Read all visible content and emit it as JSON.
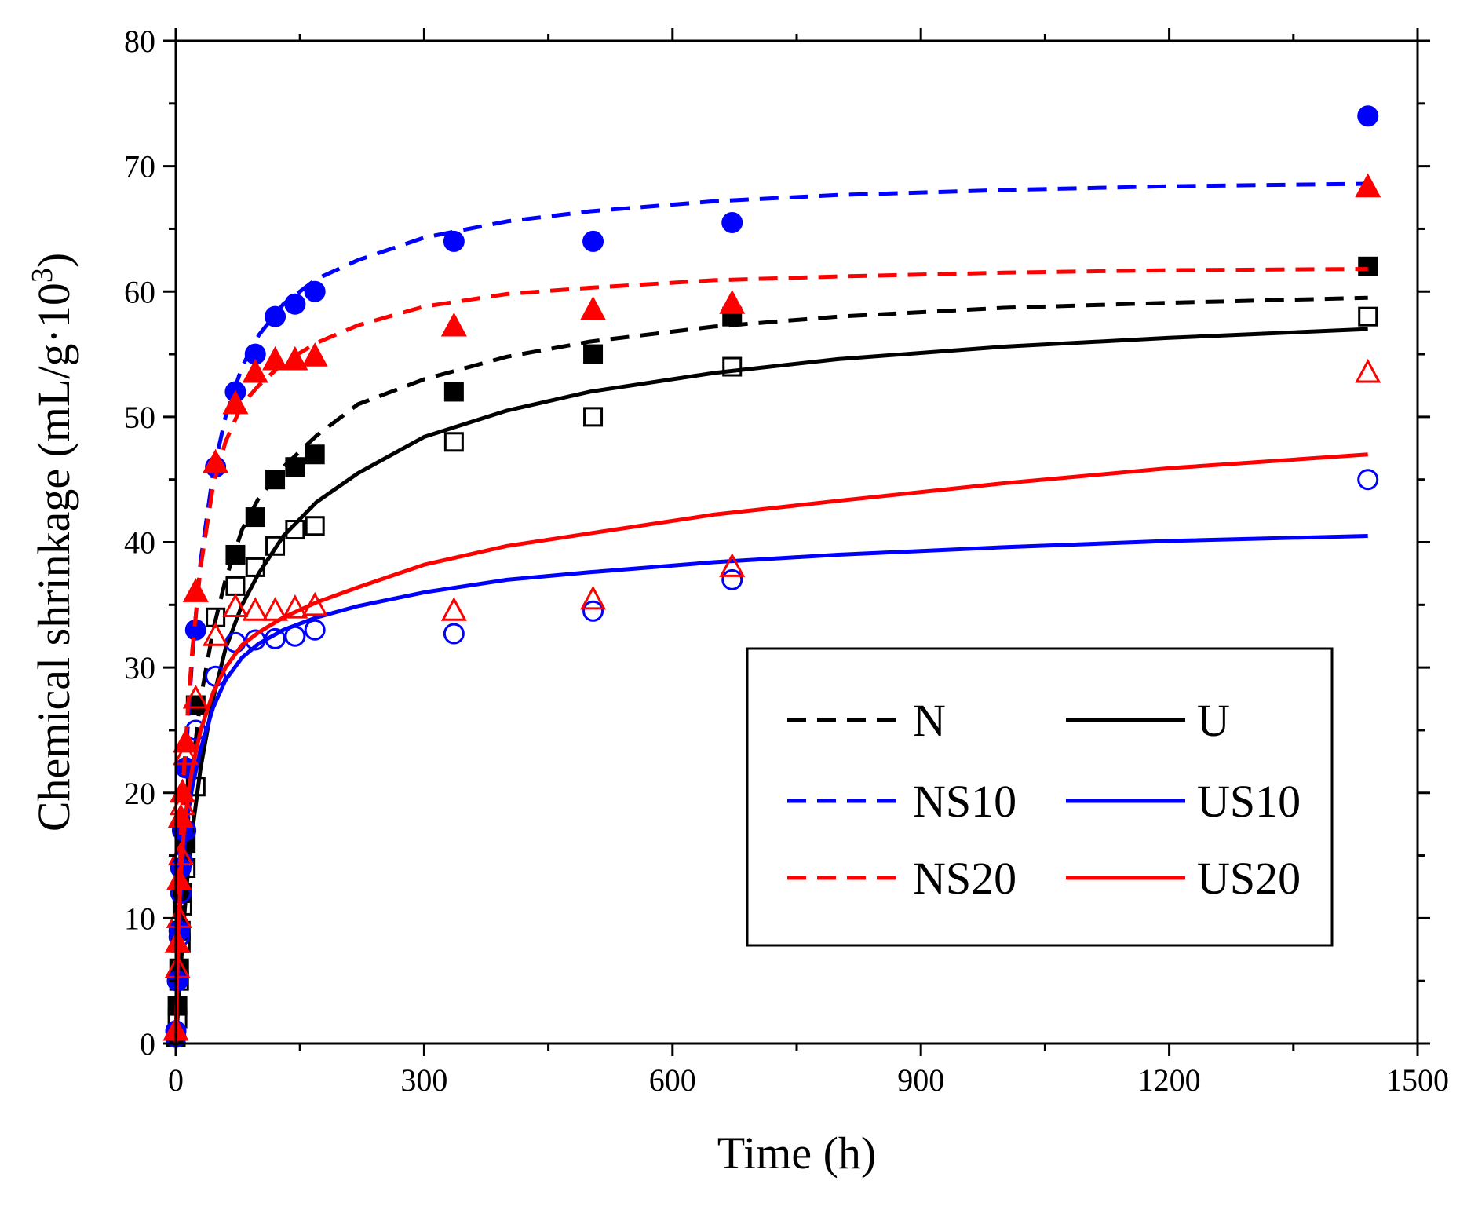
{
  "chart_data": {
    "type": "scatter",
    "title": "",
    "xlabel": "Time (h)",
    "ylabel": {
      "main": "Chemical shrinkage (mL/g·10",
      "sup": "3",
      "close": ")"
    },
    "xlim": [
      0,
      1500
    ],
    "ylim": [
      0,
      80
    ],
    "xticks": [
      0,
      300,
      600,
      900,
      1200,
      1500
    ],
    "yticks": [
      0,
      10,
      20,
      30,
      40,
      50,
      60,
      70,
      80
    ],
    "grid": false,
    "legend_position": "lower-right",
    "series": [
      {
        "name": "N",
        "color": "#000000",
        "line": "dashed",
        "marker": "square",
        "filled": true,
        "x": [
          0,
          2,
          4,
          6,
          8,
          12,
          24,
          72,
          96,
          120,
          144,
          168,
          336,
          504,
          672,
          1440
        ],
        "y": [
          0.5,
          3,
          6,
          9,
          12,
          16,
          27,
          39,
          42,
          45,
          46,
          47,
          52,
          55,
          58,
          62
        ],
        "fit_x": [
          0,
          1,
          3,
          6,
          10,
          15,
          20,
          30,
          45,
          60,
          80,
          100,
          130,
          170,
          220,
          300,
          400,
          500,
          650,
          800,
          1000,
          1200,
          1440
        ],
        "fit_y": [
          0,
          1.5,
          4,
          8,
          13,
          18,
          22,
          27.5,
          33,
          37,
          41,
          43.5,
          46,
          48.5,
          51,
          53,
          54.8,
          56,
          57.2,
          58,
          58.7,
          59.1,
          59.5
        ]
      },
      {
        "name": "U",
        "color": "#000000",
        "line": "solid",
        "marker": "square",
        "filled": false,
        "x": [
          0,
          2,
          4,
          6,
          8,
          12,
          24,
          48,
          72,
          96,
          120,
          144,
          168,
          336,
          504,
          672,
          1440
        ],
        "y": [
          0.5,
          2,
          5,
          8,
          11,
          14,
          20.5,
          34,
          36.5,
          38,
          39.7,
          41,
          41.3,
          48,
          50,
          54,
          58
        ],
        "fit_x": [
          0,
          1,
          3,
          6,
          10,
          15,
          20,
          30,
          45,
          60,
          80,
          100,
          130,
          170,
          220,
          300,
          400,
          500,
          650,
          800,
          1000,
          1200,
          1440
        ],
        "fit_y": [
          0,
          1,
          3,
          6,
          10,
          14,
          17,
          22,
          27.5,
          31.5,
          35,
          37.5,
          40.5,
          43.2,
          45.5,
          48.4,
          50.5,
          52,
          53.5,
          54.6,
          55.6,
          56.3,
          57
        ]
      },
      {
        "name": "NS10",
        "color": "#0000ff",
        "line": "dashed",
        "marker": "circle",
        "filled": true,
        "x": [
          0,
          2,
          4,
          6,
          8,
          12,
          24,
          48,
          72,
          96,
          120,
          144,
          168,
          336,
          504,
          672,
          1440
        ],
        "y": [
          1,
          5,
          9,
          14,
          17,
          22,
          33,
          46,
          52,
          55,
          58,
          59,
          60,
          64,
          64,
          65.5,
          74
        ],
        "fit_x": [
          0,
          1,
          3,
          6,
          10,
          15,
          20,
          30,
          45,
          60,
          80,
          100,
          130,
          170,
          220,
          300,
          400,
          500,
          650,
          800,
          1000,
          1200,
          1440
        ],
        "fit_y": [
          0,
          3,
          8,
          14,
          20,
          26,
          31,
          38.5,
          45.5,
          50,
          54,
          56.5,
          59,
          61,
          62.5,
          64.3,
          65.6,
          66.4,
          67.2,
          67.7,
          68.1,
          68.4,
          68.6
        ]
      },
      {
        "name": "US10",
        "color": "#0000ff",
        "line": "solid",
        "marker": "circle",
        "filled": false,
        "x": [
          0,
          2,
          4,
          6,
          8,
          12,
          24,
          48,
          72,
          96,
          120,
          144,
          168,
          336,
          504,
          672,
          1440
        ],
        "y": [
          0.5,
          5,
          8.5,
          12,
          14.5,
          17,
          25,
          29.3,
          32,
          32.2,
          32.3,
          32.5,
          33,
          32.7,
          34.5,
          37,
          45
        ],
        "fit_x": [
          0,
          1,
          3,
          6,
          10,
          15,
          20,
          30,
          45,
          60,
          80,
          100,
          130,
          170,
          220,
          300,
          400,
          500,
          650,
          800,
          1000,
          1200,
          1440
        ],
        "fit_y": [
          0,
          3,
          8,
          12,
          15.5,
          18.5,
          20.5,
          23.5,
          26.8,
          29,
          30.8,
          31.9,
          33,
          34,
          34.9,
          36,
          37,
          37.6,
          38.4,
          39,
          39.6,
          40.1,
          40.5
        ]
      },
      {
        "name": "NS20",
        "color": "#ff0000",
        "line": "dashed",
        "marker": "triangle",
        "filled": true,
        "x": [
          0,
          2,
          4,
          6,
          8,
          12,
          24,
          48,
          72,
          96,
          120,
          144,
          168,
          336,
          504,
          672,
          1440
        ],
        "y": [
          1,
          8,
          13,
          18,
          20,
          24,
          36,
          46.3,
          51,
          53.5,
          54.5,
          54.5,
          54.8,
          57.2,
          58.5,
          59,
          68.3
        ],
        "fit_x": [
          0,
          1,
          3,
          6,
          10,
          15,
          20,
          30,
          45,
          60,
          80,
          100,
          130,
          170,
          220,
          300,
          400,
          500,
          650,
          800,
          1000,
          1200,
          1440
        ],
        "fit_y": [
          0,
          4,
          10,
          16.5,
          22,
          27,
          31.5,
          38,
          44.5,
          48,
          51,
          52.5,
          54.3,
          55.9,
          57.3,
          58.8,
          59.8,
          60.3,
          60.9,
          61.2,
          61.5,
          61.7,
          61.8
        ]
      },
      {
        "name": "US20",
        "color": "#ff0000",
        "line": "solid",
        "marker": "triangle",
        "filled": false,
        "x": [
          0,
          2,
          4,
          6,
          8,
          12,
          24,
          48,
          72,
          96,
          120,
          144,
          168,
          336,
          504,
          672,
          1440
        ],
        "y": [
          1,
          6,
          10,
          15,
          19,
          23,
          27.5,
          32.5,
          34.8,
          34.5,
          34.5,
          34.7,
          34.9,
          34.5,
          35.4,
          38,
          53.5
        ],
        "fit_x": [
          0,
          1,
          3,
          6,
          10,
          15,
          20,
          30,
          45,
          60,
          80,
          100,
          130,
          170,
          220,
          300,
          400,
          500,
          650,
          800,
          1000,
          1200,
          1440
        ],
        "fit_y": [
          0,
          3.5,
          9,
          13.5,
          17,
          20,
          22,
          25,
          28,
          30,
          31.8,
          32.8,
          34,
          35.2,
          36.4,
          38.2,
          39.7,
          40.7,
          42.2,
          43.3,
          44.7,
          45.9,
          47
        ]
      }
    ]
  }
}
